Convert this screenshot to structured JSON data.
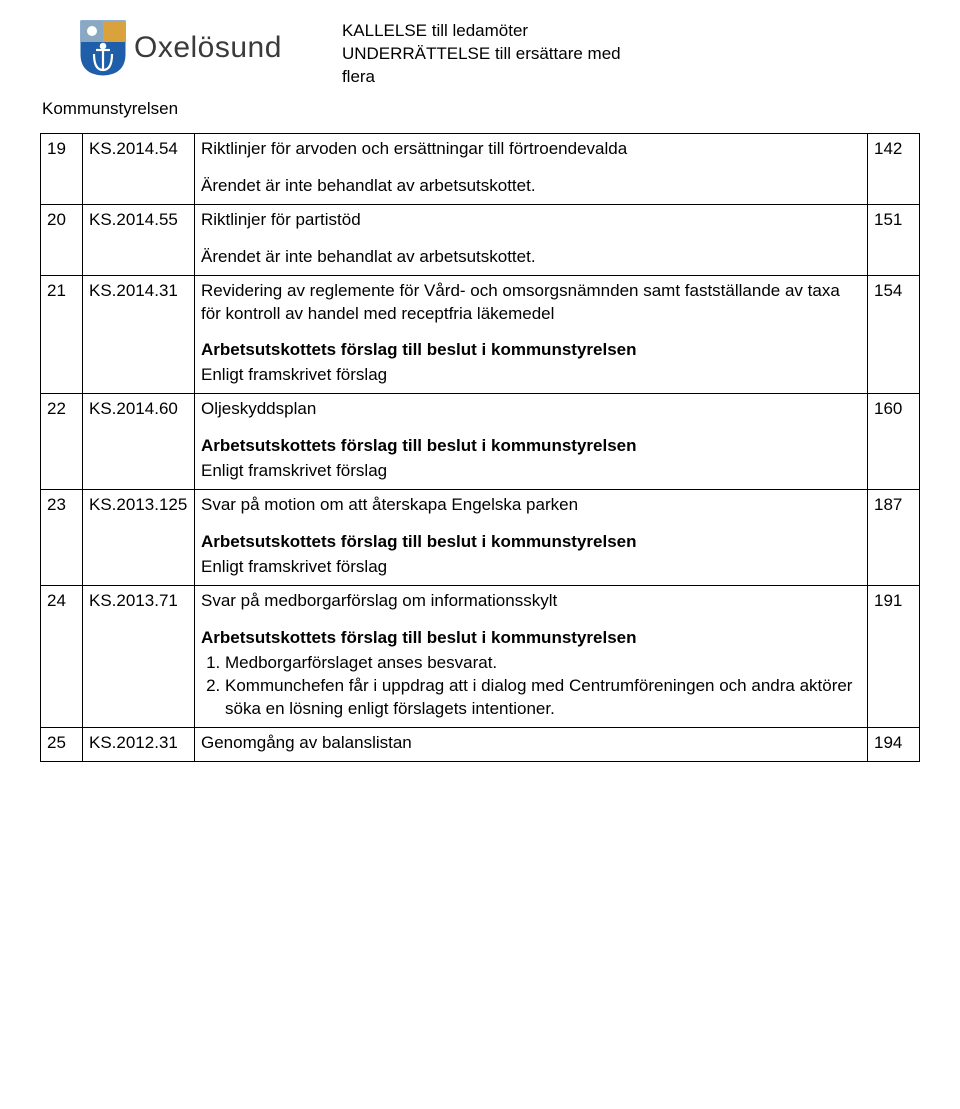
{
  "brand": "Oxelösund",
  "header_right": {
    "line1": "KALLELSE till ledamöter",
    "line2": "UNDERRÄTTELSE till ersättare med",
    "line3": "flera"
  },
  "subhead": "Kommunstyrelsen",
  "colors": {
    "border": "#000000",
    "text": "#000000",
    "brand_text": "#3a3a3a",
    "shield_top_left": "#8aa9c0",
    "shield_top_right": "#d9a23d",
    "shield_bottom": "#1f5ea8",
    "shield_anchor": "#ffffff"
  },
  "font": {
    "body_size_pt": 12,
    "brand_size_pt": 22
  },
  "rows": [
    {
      "num": "19",
      "ref": "KS.2014.54",
      "title": "Riktlinjer för arvoden och ersättningar till förtroendevalda",
      "page": "142",
      "plain_suffix": "Ärendet är inte behandlat av arbetsutskottet."
    },
    {
      "num": "20",
      "ref": "KS.2014.55",
      "title": "Riktlinjer för partistöd",
      "page": "151",
      "plain_suffix": "Ärendet är inte behandlat av arbetsutskottet."
    },
    {
      "num": "21",
      "ref": "KS.2014.31",
      "title": "Revidering av reglemente för Vård- och omsorgsnämnden samt fastställande av taxa för kontroll av handel med receptfria läkemedel",
      "page": "154",
      "bold_suffix": "Arbetsutskottets förslag till beslut i kommunstyrelsen",
      "suffix_lines": [
        "Enligt framskrivet förslag"
      ]
    },
    {
      "num": "22",
      "ref": "KS.2014.60",
      "title": "Oljeskyddsplan",
      "page": "160",
      "bold_suffix": "Arbetsutskottets förslag till beslut i kommunstyrelsen",
      "suffix_lines": [
        "Enligt framskrivet förslag"
      ]
    },
    {
      "num": "23",
      "ref": "KS.2013.125",
      "title": "Svar på motion om att återskapa Engelska parken",
      "page": "187",
      "bold_suffix": "Arbetsutskottets förslag till beslut i kommunstyrelsen",
      "suffix_lines": [
        "Enligt framskrivet förslag"
      ]
    },
    {
      "num": "24",
      "ref": "KS.2013.71",
      "title": "Svar på medborgarförslag om informationsskylt",
      "page": "191",
      "bold_suffix": "Arbetsutskottets förslag till beslut i kommunstyrelsen",
      "ordered_items": [
        "Medborgarförslaget anses besvarat.",
        "Kommunchefen får i uppdrag att i dialog med Centrumföreningen och andra aktörer söka en lösning enligt förslagets intentioner."
      ]
    },
    {
      "num": "25",
      "ref": "KS.2012.31",
      "title": "Genomgång av balanslistan",
      "page": "194"
    }
  ]
}
